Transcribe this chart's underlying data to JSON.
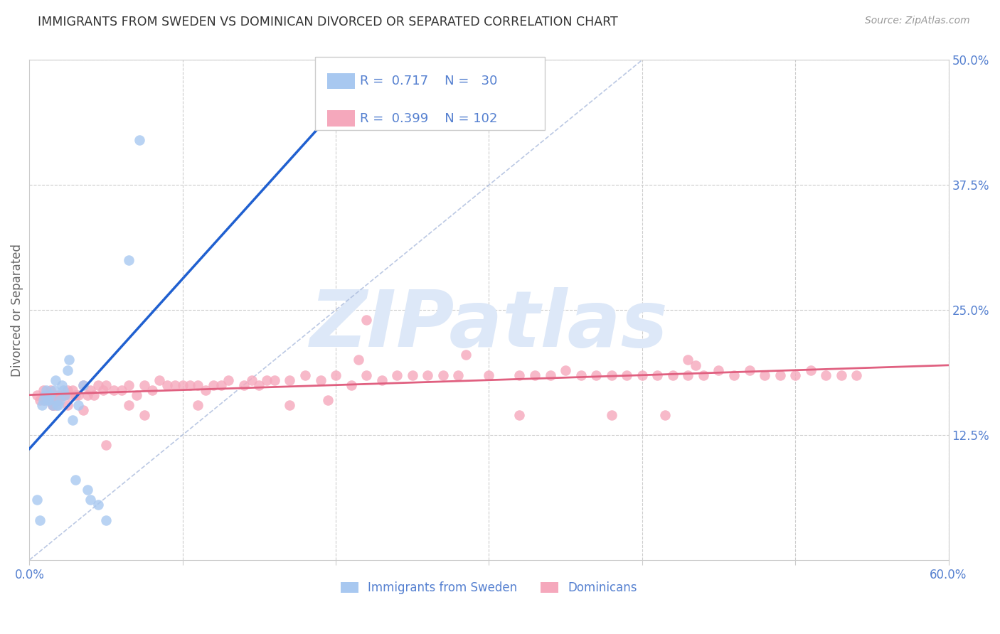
{
  "title": "IMMIGRANTS FROM SWEDEN VS DOMINICAN DIVORCED OR SEPARATED CORRELATION CHART",
  "source_text": "Source: ZipAtlas.com",
  "ylabel": "Divorced or Separated",
  "xlim": [
    0.0,
    0.6
  ],
  "ylim": [
    0.0,
    0.5
  ],
  "xtick_vals": [
    0.0,
    0.1,
    0.2,
    0.3,
    0.4,
    0.5,
    0.6
  ],
  "xticklabels": [
    "0.0%",
    "",
    "",
    "",
    "",
    "",
    "60.0%"
  ],
  "yticks_right": [
    0.125,
    0.25,
    0.375,
    0.5
  ],
  "yticklabels_right": [
    "12.5%",
    "25.0%",
    "37.5%",
    "50.0%"
  ],
  "legend_r1": "0.717",
  "legend_n1": "30",
  "legend_r2": "0.399",
  "legend_n2": "102",
  "legend_label1": "Immigrants from Sweden",
  "legend_label2": "Dominicans",
  "scatter_blue_x": [
    0.005,
    0.007,
    0.008,
    0.009,
    0.01,
    0.011,
    0.012,
    0.013,
    0.014,
    0.015,
    0.016,
    0.017,
    0.018,
    0.019,
    0.02,
    0.021,
    0.022,
    0.023,
    0.025,
    0.026,
    0.028,
    0.03,
    0.032,
    0.035,
    0.038,
    0.04,
    0.045,
    0.05,
    0.065,
    0.072
  ],
  "scatter_blue_y": [
    0.06,
    0.04,
    0.155,
    0.16,
    0.165,
    0.17,
    0.16,
    0.16,
    0.165,
    0.155,
    0.17,
    0.18,
    0.155,
    0.155,
    0.16,
    0.175,
    0.17,
    0.165,
    0.19,
    0.2,
    0.14,
    0.08,
    0.155,
    0.175,
    0.07,
    0.06,
    0.055,
    0.04,
    0.3,
    0.42
  ],
  "scatter_pink_x": [
    0.005,
    0.007,
    0.009,
    0.01,
    0.011,
    0.012,
    0.013,
    0.014,
    0.015,
    0.016,
    0.017,
    0.018,
    0.019,
    0.02,
    0.021,
    0.022,
    0.023,
    0.025,
    0.026,
    0.028,
    0.03,
    0.032,
    0.035,
    0.038,
    0.04,
    0.042,
    0.045,
    0.048,
    0.05,
    0.055,
    0.06,
    0.065,
    0.07,
    0.075,
    0.08,
    0.085,
    0.09,
    0.095,
    0.1,
    0.105,
    0.11,
    0.115,
    0.12,
    0.125,
    0.13,
    0.14,
    0.145,
    0.15,
    0.155,
    0.16,
    0.17,
    0.18,
    0.19,
    0.2,
    0.21,
    0.22,
    0.23,
    0.24,
    0.25,
    0.26,
    0.27,
    0.28,
    0.3,
    0.32,
    0.33,
    0.34,
    0.35,
    0.36,
    0.37,
    0.38,
    0.39,
    0.4,
    0.41,
    0.42,
    0.43,
    0.44,
    0.45,
    0.46,
    0.47,
    0.48,
    0.49,
    0.5,
    0.51,
    0.52,
    0.53,
    0.54,
    0.015,
    0.025,
    0.035,
    0.065,
    0.075,
    0.11,
    0.17,
    0.195,
    0.215,
    0.285,
    0.32,
    0.38,
    0.415,
    0.435,
    0.05,
    0.22,
    0.43
  ],
  "scatter_pink_y": [
    0.165,
    0.16,
    0.17,
    0.16,
    0.165,
    0.165,
    0.165,
    0.17,
    0.155,
    0.165,
    0.155,
    0.165,
    0.16,
    0.165,
    0.165,
    0.165,
    0.165,
    0.17,
    0.165,
    0.17,
    0.165,
    0.165,
    0.175,
    0.165,
    0.17,
    0.165,
    0.175,
    0.17,
    0.175,
    0.17,
    0.17,
    0.175,
    0.165,
    0.175,
    0.17,
    0.18,
    0.175,
    0.175,
    0.175,
    0.175,
    0.175,
    0.17,
    0.175,
    0.175,
    0.18,
    0.175,
    0.18,
    0.175,
    0.18,
    0.18,
    0.18,
    0.185,
    0.18,
    0.185,
    0.175,
    0.185,
    0.18,
    0.185,
    0.185,
    0.185,
    0.185,
    0.185,
    0.185,
    0.185,
    0.185,
    0.185,
    0.19,
    0.185,
    0.185,
    0.185,
    0.185,
    0.185,
    0.185,
    0.185,
    0.185,
    0.185,
    0.19,
    0.185,
    0.19,
    0.185,
    0.185,
    0.185,
    0.19,
    0.185,
    0.185,
    0.185,
    0.155,
    0.155,
    0.15,
    0.155,
    0.145,
    0.155,
    0.155,
    0.16,
    0.2,
    0.205,
    0.145,
    0.145,
    0.145,
    0.195,
    0.115,
    0.24,
    0.2
  ],
  "color_blue": "#a8c8f0",
  "color_pink": "#f5a8bc",
  "color_blue_line": "#2060d0",
  "color_pink_line": "#e06080",
  "color_axis_labels": "#5580d0",
  "background_color": "#ffffff",
  "grid_color": "#cccccc",
  "watermark_text": "ZIPatlas",
  "watermark_color": "#dde8f8",
  "diag_line_color": "#aabbdd"
}
